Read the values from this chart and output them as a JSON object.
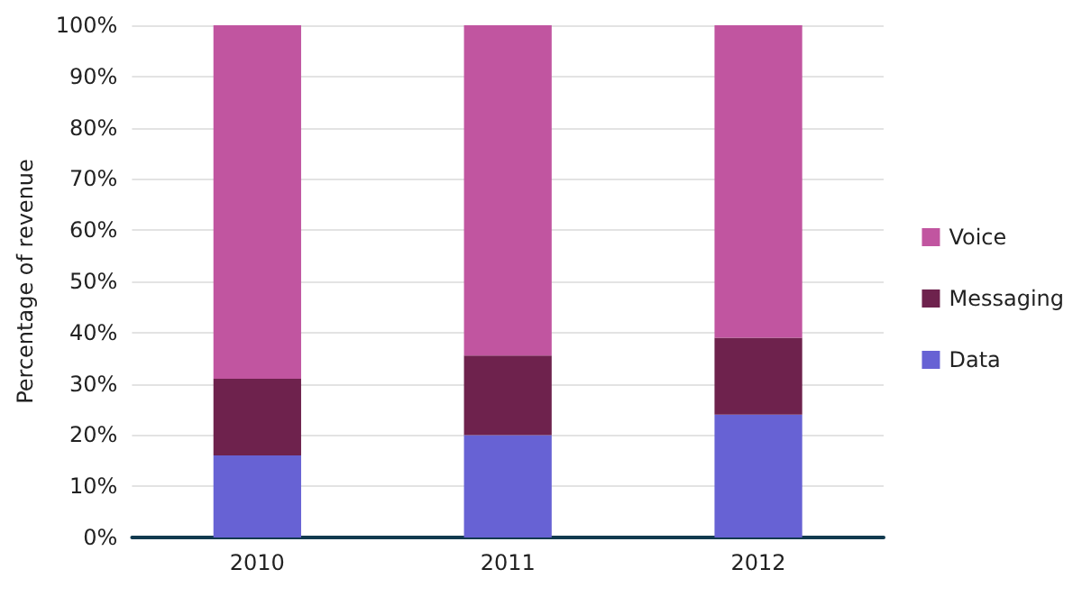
{
  "chart_data": {
    "type": "bar",
    "stacked": true,
    "ylabel": "Percentage of revenue",
    "categories": [
      "2010",
      "2011",
      "2012"
    ],
    "series": [
      {
        "name": "Data",
        "color": "#6762d4",
        "values": [
          16,
          20,
          24
        ]
      },
      {
        "name": "Messaging",
        "color": "#6e224d",
        "values": [
          15,
          15.5,
          15
        ]
      },
      {
        "name": "Voice",
        "color": "#c155a0",
        "values": [
          69,
          64.5,
          61
        ]
      }
    ],
    "ylim": [
      0,
      100
    ],
    "yticks": [
      {
        "value": 0,
        "label": "0%"
      },
      {
        "value": 10,
        "label": "10%"
      },
      {
        "value": 20,
        "label": "20%"
      },
      {
        "value": 30,
        "label": "30%"
      },
      {
        "value": 40,
        "label": "40%"
      },
      {
        "value": 50,
        "label": "50%"
      },
      {
        "value": 60,
        "label": "60%"
      },
      {
        "value": 70,
        "label": "70%"
      },
      {
        "value": 80,
        "label": "80%"
      },
      {
        "value": 90,
        "label": "90%"
      },
      {
        "value": 100,
        "label": "100%"
      }
    ],
    "grid": "y",
    "legend": "right"
  }
}
